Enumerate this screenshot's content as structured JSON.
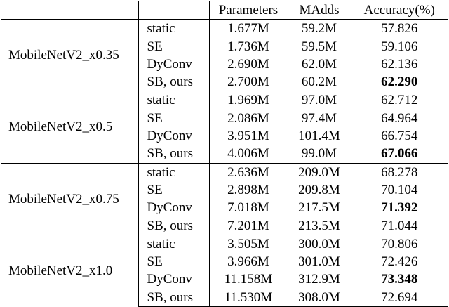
{
  "headers": {
    "model": "",
    "method": "",
    "params": "Parameters",
    "madds": "MAdds",
    "accuracy": "Accuracy(%)"
  },
  "groups": [
    {
      "model": "MobileNetV2_x0.35",
      "rows": [
        {
          "method": "static",
          "params": "1.677M",
          "madds": "59.2M",
          "accuracy": "57.826",
          "bold": false
        },
        {
          "method": "SE",
          "params": "1.736M",
          "madds": "59.5M",
          "accuracy": "59.106",
          "bold": false
        },
        {
          "method": "DyConv",
          "params": "2.690M",
          "madds": "62.0M",
          "accuracy": "62.136",
          "bold": false
        },
        {
          "method": "SB, ours",
          "params": "2.700M",
          "madds": "60.2M",
          "accuracy": "62.290",
          "bold": true
        }
      ]
    },
    {
      "model": "MobileNetV2_x0.5",
      "rows": [
        {
          "method": "static",
          "params": "1.969M",
          "madds": "97.0M",
          "accuracy": "62.712",
          "bold": false
        },
        {
          "method": "SE",
          "params": "2.086M",
          "madds": "97.4M",
          "accuracy": "64.964",
          "bold": false
        },
        {
          "method": "DyConv",
          "params": "3.951M",
          "madds": "101.4M",
          "accuracy": "66.754",
          "bold": false
        },
        {
          "method": "SB, ours",
          "params": "4.006M",
          "madds": "99.0M",
          "accuracy": "67.066",
          "bold": true
        }
      ]
    },
    {
      "model": "MobileNetV2_x0.75",
      "rows": [
        {
          "method": "static",
          "params": "2.636M",
          "madds": "209.0M",
          "accuracy": "68.278",
          "bold": false
        },
        {
          "method": "SE",
          "params": "2.898M",
          "madds": "209.8M",
          "accuracy": "70.104",
          "bold": false
        },
        {
          "method": "DyConv",
          "params": "7.018M",
          "madds": "217.5M",
          "accuracy": "71.392",
          "bold": true
        },
        {
          "method": "SB, ours",
          "params": "7.201M",
          "madds": "213.5M",
          "accuracy": "71.044",
          "bold": false
        }
      ]
    },
    {
      "model": "MobileNetV2_x1.0",
      "rows": [
        {
          "method": "static",
          "params": "3.505M",
          "madds": "300.0M",
          "accuracy": "70.806",
          "bold": false
        },
        {
          "method": "SE",
          "params": "3.966M",
          "madds": "301.0M",
          "accuracy": "72.426",
          "bold": false
        },
        {
          "method": "DyConv",
          "params": "11.158M",
          "madds": "312.9M",
          "accuracy": "73.348",
          "bold": true
        },
        {
          "method": "SB, ours",
          "params": "11.530M",
          "madds": "308.0M",
          "accuracy": "72.694",
          "bold": false
        }
      ]
    }
  ]
}
